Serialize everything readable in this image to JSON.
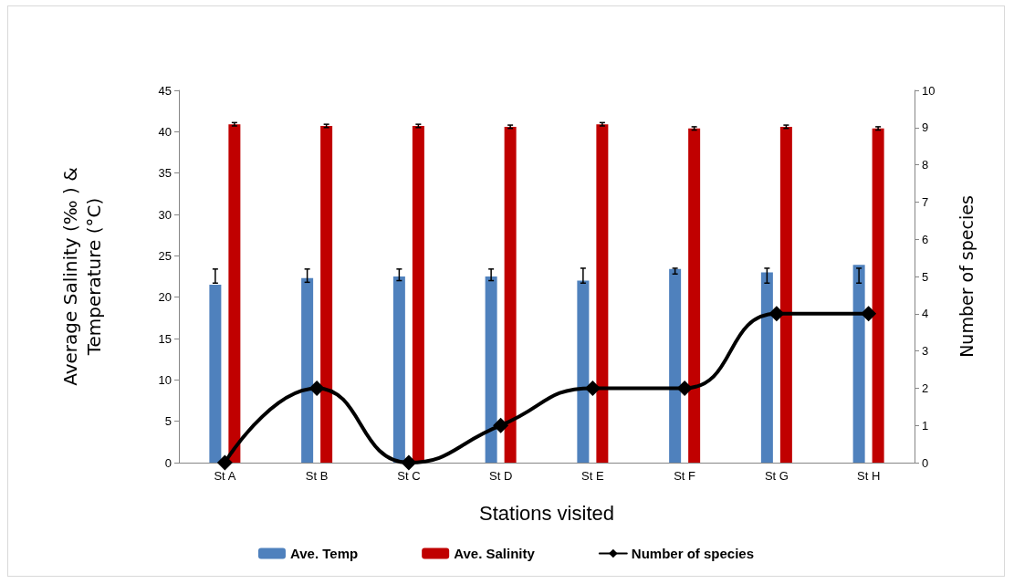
{
  "chart_data": {
    "type": "bar",
    "xlabel": "Stations visited",
    "ylabel": "Average Salinity (‰ ) &\nTemperature (°C)",
    "y2label": "Number of species",
    "categories": [
      "St A",
      "St B",
      "St C",
      "St D",
      "St E",
      "St F",
      "St G",
      "St H"
    ],
    "series": [
      {
        "name": "Ave. Temp",
        "color": "#4f81bd",
        "values": [
          21.5,
          22.3,
          22.5,
          22.5,
          22.0,
          23.4,
          23.0,
          23.9
        ],
        "errors": [
          [
            21.7,
            23.4
          ],
          [
            21.8,
            23.4
          ],
          [
            22.0,
            23.4
          ],
          [
            22.0,
            23.4
          ],
          [
            21.7,
            23.5
          ],
          [
            22.8,
            23.5
          ],
          [
            21.7,
            23.5
          ],
          [
            21.7,
            23.5
          ]
        ]
      },
      {
        "name": "Ave. Salinity",
        "color": "#c00000",
        "values": [
          40.9,
          40.7,
          40.7,
          40.6,
          40.9,
          40.4,
          40.6,
          40.4
        ],
        "errors": [
          0.2,
          0.2,
          0.2,
          0.2,
          0.2,
          0.2,
          0.2,
          0.2
        ]
      },
      {
        "name": "Number of species",
        "type": "line",
        "axis": "y2",
        "color": "#000000",
        "marker": "diamond",
        "values": [
          0,
          2,
          0,
          1,
          2,
          2,
          4,
          4
        ]
      }
    ],
    "ylim": [
      0,
      45
    ],
    "yticks": [
      0,
      5,
      10,
      15,
      20,
      25,
      30,
      35,
      40,
      45
    ],
    "y2lim": [
      0,
      10
    ],
    "y2ticks": [
      0,
      1,
      2,
      3,
      4,
      5,
      6,
      7,
      8,
      9,
      10
    ],
    "grid": false,
    "legend": "bottom"
  }
}
